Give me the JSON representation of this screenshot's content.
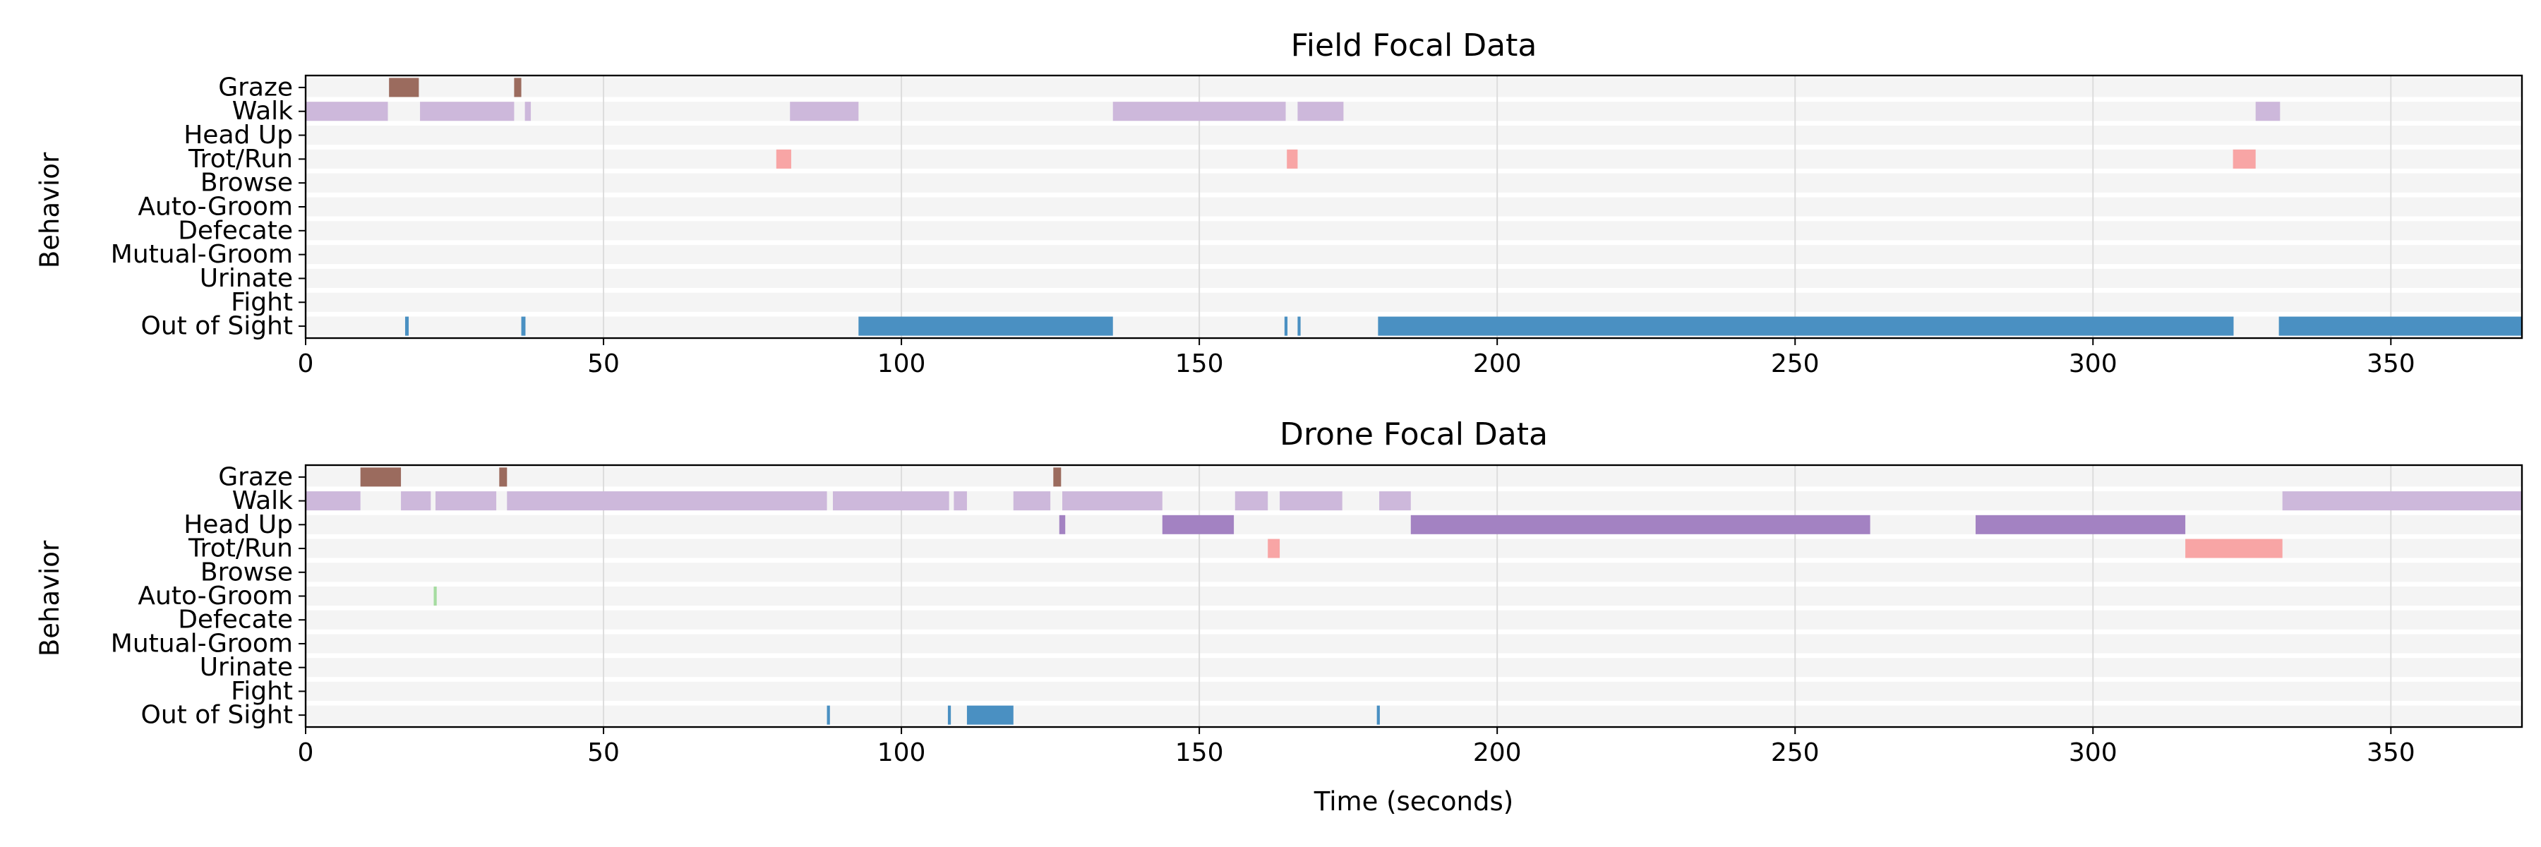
{
  "chart_data": [
    {
      "type": "timeline",
      "title": "Field Focal Data",
      "xlabel": "",
      "ylabel": "Behavior",
      "xlim": [
        0,
        372
      ],
      "xticks": [
        0,
        50,
        100,
        150,
        200,
        250,
        300,
        350
      ],
      "grid": true,
      "behaviors": [
        "Graze",
        "Walk",
        "Head Up",
        "Trot/Run",
        "Browse",
        "Auto-Groom",
        "Defecate",
        "Mutual-Groom",
        "Urinate",
        "Fight",
        "Out of Sight"
      ],
      "colors": {
        "Graze": "#9b6b5e",
        "Walk": "#cdb8db",
        "Head Up": "#a382c2",
        "Trot/Run": "#f8a5a5",
        "Browse": "#8fb56b",
        "Auto-Groom": "#a5dca0",
        "Defecate": "#c8a26a",
        "Mutual-Groom": "#e6b97f",
        "Urinate": "#f1d36b",
        "Fight": "#d62728",
        "Out of Sight": "#4a90c2",
        "row_background": "#f4f4f4"
      },
      "events": [
        {
          "behavior": "Graze",
          "start": 14,
          "end": 19
        },
        {
          "behavior": "Graze",
          "start": 35,
          "end": 36.2
        },
        {
          "behavior": "Walk",
          "start": 0,
          "end": 13.8
        },
        {
          "behavior": "Walk",
          "start": 19.2,
          "end": 35
        },
        {
          "behavior": "Walk",
          "start": 36.8,
          "end": 37.8
        },
        {
          "behavior": "Walk",
          "start": 81.3,
          "end": 92.8
        },
        {
          "behavior": "Walk",
          "start": 135.5,
          "end": 164.5
        },
        {
          "behavior": "Walk",
          "start": 166.5,
          "end": 174.2
        },
        {
          "behavior": "Walk",
          "start": 327.3,
          "end": 331.4
        },
        {
          "behavior": "Trot/Run",
          "start": 79,
          "end": 81.5
        },
        {
          "behavior": "Trot/Run",
          "start": 164.7,
          "end": 166.5
        },
        {
          "behavior": "Trot/Run",
          "start": 323.5,
          "end": 327.3
        },
        {
          "behavior": "Out of Sight",
          "start": 16.7,
          "end": 17.3
        },
        {
          "behavior": "Out of Sight",
          "start": 36.2,
          "end": 36.9
        },
        {
          "behavior": "Out of Sight",
          "start": 92.8,
          "end": 135.5
        },
        {
          "behavior": "Out of Sight",
          "start": 164.3,
          "end": 164.8
        },
        {
          "behavior": "Out of Sight",
          "start": 166.5,
          "end": 167
        },
        {
          "behavior": "Out of Sight",
          "start": 180,
          "end": 323.6
        },
        {
          "behavior": "Out of Sight",
          "start": 331.2,
          "end": 372
        }
      ]
    },
    {
      "type": "timeline",
      "title": "Drone Focal Data",
      "xlabel": "Time (seconds)",
      "ylabel": "Behavior",
      "xlim": [
        0,
        372
      ],
      "xticks": [
        0,
        50,
        100,
        150,
        200,
        250,
        300,
        350
      ],
      "grid": true,
      "behaviors": [
        "Graze",
        "Walk",
        "Head Up",
        "Trot/Run",
        "Browse",
        "Auto-Groom",
        "Defecate",
        "Mutual-Groom",
        "Urinate",
        "Fight",
        "Out of Sight"
      ],
      "colors": {
        "Graze": "#9b6b5e",
        "Walk": "#cdb8db",
        "Head Up": "#a382c2",
        "Trot/Run": "#f8a5a5",
        "Browse": "#8fb56b",
        "Auto-Groom": "#a5dca0",
        "Defecate": "#c8a26a",
        "Mutual-Groom": "#e6b97f",
        "Urinate": "#f1d36b",
        "Fight": "#d62728",
        "Out of Sight": "#4a90c2",
        "row_background": "#f4f4f4"
      },
      "events": [
        {
          "behavior": "Graze",
          "start": 9.2,
          "end": 16
        },
        {
          "behavior": "Graze",
          "start": 32.5,
          "end": 33.8
        },
        {
          "behavior": "Graze",
          "start": 125.5,
          "end": 126.8
        },
        {
          "behavior": "Walk",
          "start": 0,
          "end": 9.2
        },
        {
          "behavior": "Walk",
          "start": 16,
          "end": 21
        },
        {
          "behavior": "Walk",
          "start": 21.8,
          "end": 32
        },
        {
          "behavior": "Walk",
          "start": 33.8,
          "end": 87.5
        },
        {
          "behavior": "Walk",
          "start": 88.5,
          "end": 108
        },
        {
          "behavior": "Walk",
          "start": 108.8,
          "end": 111
        },
        {
          "behavior": "Walk",
          "start": 118.8,
          "end": 125
        },
        {
          "behavior": "Walk",
          "start": 127,
          "end": 143.8
        },
        {
          "behavior": "Walk",
          "start": 156,
          "end": 161.5
        },
        {
          "behavior": "Walk",
          "start": 163.5,
          "end": 174
        },
        {
          "behavior": "Walk",
          "start": 180.2,
          "end": 185.5
        },
        {
          "behavior": "Walk",
          "start": 331.8,
          "end": 372
        },
        {
          "behavior": "Head Up",
          "start": 126.5,
          "end": 127.5
        },
        {
          "behavior": "Head Up",
          "start": 143.8,
          "end": 155.8
        },
        {
          "behavior": "Head Up",
          "start": 185.5,
          "end": 262.6
        },
        {
          "behavior": "Head Up",
          "start": 280.3,
          "end": 315.5
        },
        {
          "behavior": "Trot/Run",
          "start": 161.5,
          "end": 163.5
        },
        {
          "behavior": "Trot/Run",
          "start": 315.5,
          "end": 331.8
        },
        {
          "behavior": "Auto-Groom",
          "start": 21.5,
          "end": 22
        },
        {
          "behavior": "Out of Sight",
          "start": 87.5,
          "end": 88
        },
        {
          "behavior": "Out of Sight",
          "start": 107.8,
          "end": 108.3
        },
        {
          "behavior": "Out of Sight",
          "start": 111,
          "end": 118.8
        },
        {
          "behavior": "Out of Sight",
          "start": 179.8,
          "end": 180.3
        }
      ]
    }
  ]
}
